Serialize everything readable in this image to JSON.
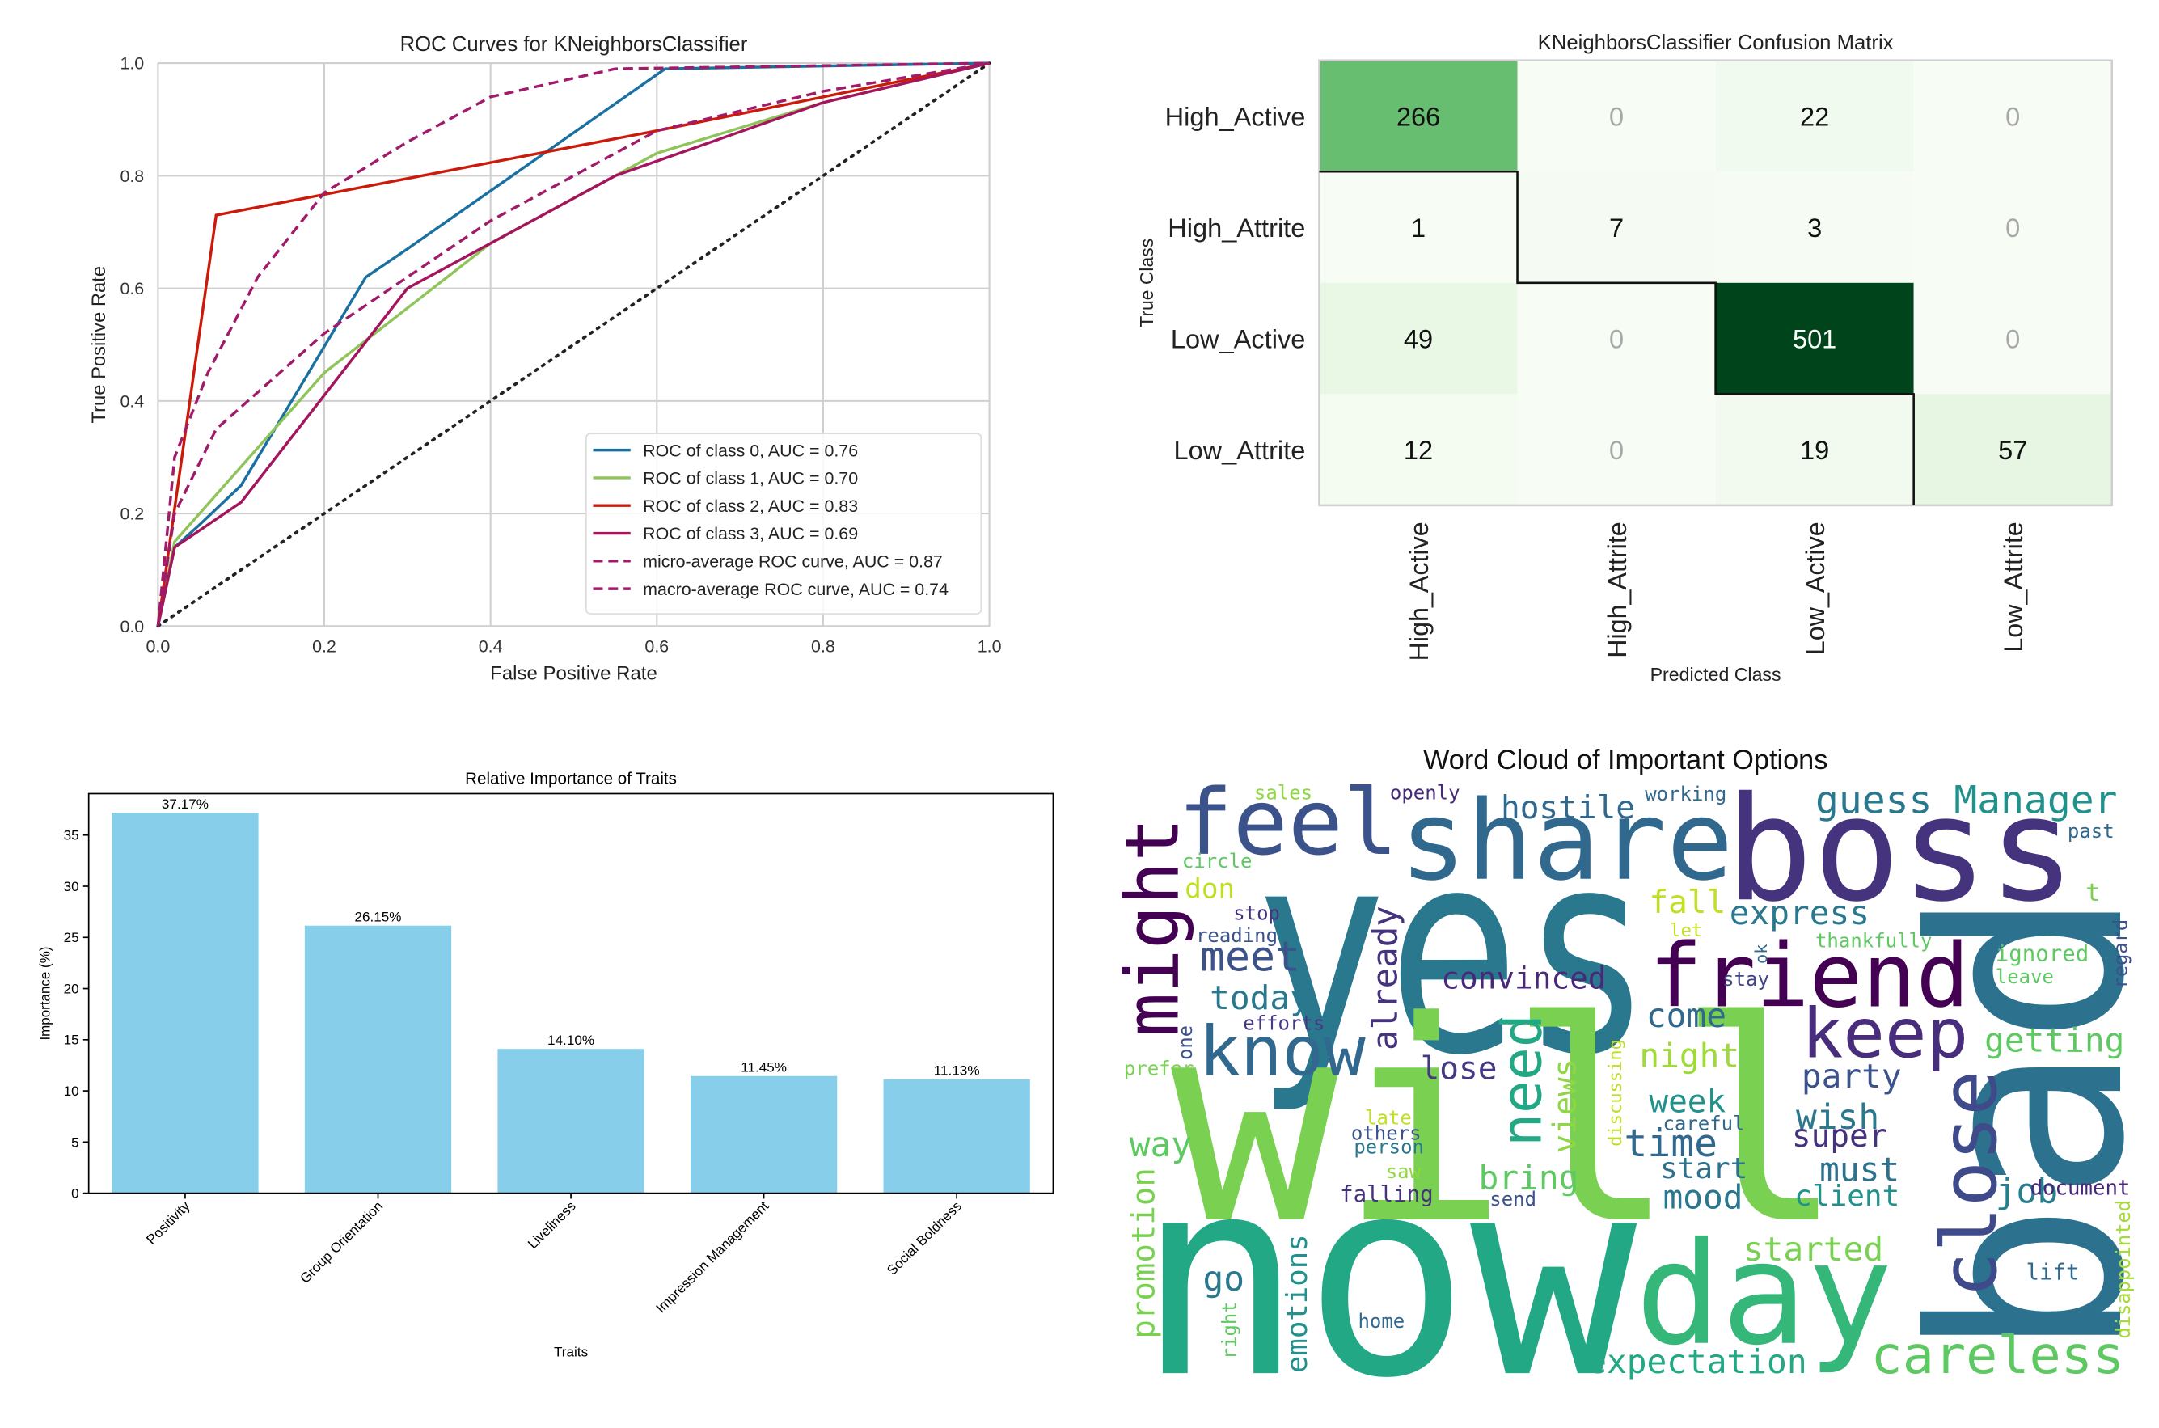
{
  "chart_data": [
    {
      "type": "line",
      "title": "ROC Curves for KNeighborsClassifier",
      "xlabel": "False Positive Rate",
      "ylabel": "True Positive Rate",
      "xlim": [
        0,
        1
      ],
      "ylim": [
        0,
        1
      ],
      "xticks": [
        {
          "value": 0,
          "label": "0.0"
        },
        0.2,
        0.4,
        0.6,
        0.8,
        {
          "value": 1,
          "label": "1.0"
        }
      ],
      "yticks": [
        {
          "value": 0,
          "label": "0.0"
        },
        0.2,
        0.4,
        0.6,
        0.8,
        {
          "value": 1,
          "label": "1.0"
        }
      ],
      "grid": true,
      "legend": "lower right",
      "series": [
        {
          "name": "ROC of class 0, AUC = 0.76",
          "color": "#1a70a0",
          "linestyle": "solid",
          "x": [
            0,
            0.02,
            0.05,
            0.1,
            0.25,
            0.3,
            0.61,
            1
          ],
          "y": [
            0,
            0.14,
            0.18,
            0.25,
            0.62,
            0.67,
            0.99,
            1
          ]
        },
        {
          "name": "ROC of class 1, AUC = 0.70",
          "color": "#8fc45a",
          "linestyle": "solid",
          "x": [
            0,
            0.02,
            0.05,
            0.2,
            0.4,
            0.55,
            0.6,
            0.8,
            1
          ],
          "y": [
            0,
            0.15,
            0.2,
            0.45,
            0.68,
            0.8,
            0.84,
            0.93,
            1
          ]
        },
        {
          "name": "ROC of class 2, AUC = 0.83",
          "color": "#cc1a0a",
          "linestyle": "solid",
          "x": [
            0,
            0.07,
            0.6,
            1
          ],
          "y": [
            0,
            0.73,
            0.88,
            1
          ]
        },
        {
          "name": "ROC of class 3, AUC = 0.69",
          "color": "#a5155e",
          "linestyle": "solid",
          "x": [
            0,
            0.02,
            0.1,
            0.3,
            0.55,
            0.8,
            1
          ],
          "y": [
            0,
            0.14,
            0.22,
            0.6,
            0.8,
            0.93,
            1
          ]
        },
        {
          "name": "micro-average ROC curve, AUC = 0.87",
          "color": "#a01c6a",
          "linestyle": "dashed",
          "x": [
            0,
            0.02,
            0.06,
            0.12,
            0.2,
            0.3,
            0.4,
            0.55,
            1
          ],
          "y": [
            0,
            0.3,
            0.45,
            0.62,
            0.77,
            0.86,
            0.94,
            0.99,
            1
          ]
        },
        {
          "name": "macro-average ROC curve, AUC = 0.74",
          "color": "#a01c6a",
          "linestyle": "dashed",
          "x": [
            0,
            0.02,
            0.07,
            0.2,
            0.4,
            0.6,
            0.8,
            1
          ],
          "y": [
            0,
            0.2,
            0.35,
            0.52,
            0.72,
            0.88,
            0.95,
            1
          ]
        }
      ]
    },
    {
      "type": "heatmap",
      "title": "KNeighborsClassifier Confusion Matrix",
      "xlabel": "Predicted Class",
      "ylabel": "True Class",
      "rows": [
        "High_Active",
        "High_Attrite",
        "Low_Active",
        "Low_Attrite"
      ],
      "columns": [
        "High_Active",
        "High_Attrite",
        "Low_Active",
        "Low_Attrite"
      ],
      "values": [
        [
          266,
          0,
          22,
          0
        ],
        [
          1,
          7,
          3,
          0
        ],
        [
          49,
          0,
          501,
          0
        ],
        [
          12,
          0,
          19,
          57
        ]
      ],
      "colormap": [
        "#f7fcf5",
        "#e5f5e0",
        "#c7e9c0",
        "#a1d99b",
        "#74c476",
        "#41ab5d",
        "#238b45",
        "#006d2c",
        "#00441b"
      ]
    },
    {
      "type": "bar",
      "title": "Relative Importance of Traits",
      "xlabel": "Traits",
      "ylabel": "Importance (%)",
      "categories": [
        "Positivity",
        "Group Orientation",
        "Liveliness",
        "Impression Management",
        "Social Boldness"
      ],
      "values": [
        37.17,
        26.15,
        14.1,
        11.45,
        11.13
      ],
      "value_labels": [
        "37.17%",
        "26.15%",
        "14.10%",
        "11.45%",
        "11.13%"
      ],
      "color": "#87ceeb",
      "ylim": [
        0,
        39.05
      ],
      "yticks": [
        0,
        5,
        10,
        15,
        20,
        25,
        30,
        35
      ]
    },
    {
      "type": "wordcloud",
      "title": "Word Cloud of Important Options",
      "words": [
        {
          "text": "yes",
          "color": "#2a788e"
        },
        {
          "text": "will",
          "color": "#7ad151"
        },
        {
          "text": "now",
          "color": "#22a884"
        },
        {
          "text": "bad",
          "color": "#2c728e"
        },
        {
          "text": "boss",
          "color": "#46337e"
        },
        {
          "text": "share",
          "color": "#31688e"
        },
        {
          "text": "feel",
          "color": "#3b528b"
        },
        {
          "text": "friend",
          "color": "#440154"
        },
        {
          "text": "day",
          "color": "#35b779"
        },
        {
          "text": "keep",
          "color": "#472d7b"
        },
        {
          "text": "know",
          "color": "#31688e"
        },
        {
          "text": "careless",
          "color": "#5ec962"
        },
        {
          "text": "close",
          "color": "#3e4a89"
        },
        {
          "text": "might",
          "color": "#440154"
        },
        {
          "text": "guess",
          "color": "#2a788e"
        },
        {
          "text": "Manager",
          "color": "#21918c"
        },
        {
          "text": "hostile",
          "color": "#31688e"
        },
        {
          "text": "express",
          "color": "#2a788e"
        },
        {
          "text": "fall",
          "color": "#c2df23"
        },
        {
          "text": "meet",
          "color": "#3b528b"
        },
        {
          "text": "today",
          "color": "#2a788e"
        },
        {
          "text": "convinced",
          "color": "#482878"
        },
        {
          "text": "already",
          "color": "#46337e"
        },
        {
          "text": "need",
          "color": "#22a884"
        },
        {
          "text": "come",
          "color": "#31688e"
        },
        {
          "text": "night",
          "color": "#a0da39"
        },
        {
          "text": "lose",
          "color": "#443a83"
        },
        {
          "text": "party",
          "color": "#3b528b"
        },
        {
          "text": "getting",
          "color": "#5ec962"
        },
        {
          "text": "wish",
          "color": "#2a788e"
        },
        {
          "text": "super",
          "color": "#46337e"
        },
        {
          "text": "week",
          "color": "#21918c"
        },
        {
          "text": "time",
          "color": "#31688e"
        },
        {
          "text": "start",
          "color": "#2c728e"
        },
        {
          "text": "mood",
          "color": "#2a788e"
        },
        {
          "text": "must",
          "color": "#2c728e"
        },
        {
          "text": "client",
          "color": "#21918c"
        },
        {
          "text": "job",
          "color": "#277f8e"
        },
        {
          "text": "views",
          "color": "#8fd744"
        },
        {
          "text": "bring",
          "color": "#5ec962"
        },
        {
          "text": "way",
          "color": "#5ec962"
        },
        {
          "text": "promotion",
          "color": "#7ad151"
        },
        {
          "text": "go",
          "color": "#2a788e"
        },
        {
          "text": "emotions",
          "color": "#21918c"
        },
        {
          "text": "expectation",
          "color": "#22a884"
        },
        {
          "text": "started",
          "color": "#7ad151"
        },
        {
          "text": "lift",
          "color": "#31688e"
        },
        {
          "text": "document",
          "color": "#482878"
        },
        {
          "text": "disappointed",
          "color": "#a5db36"
        },
        {
          "text": "past",
          "color": "#31688e"
        },
        {
          "text": "t",
          "color": "#7ad151"
        },
        {
          "text": "ignored",
          "color": "#5ec962"
        },
        {
          "text": "leave",
          "color": "#5ec962"
        },
        {
          "text": "regard",
          "color": "#3b528b"
        },
        {
          "text": "thankfully",
          "color": "#5ec962"
        },
        {
          "text": "ok",
          "color": "#31688e"
        },
        {
          "text": "stay",
          "color": "#414487"
        },
        {
          "text": "let",
          "color": "#c2df23"
        },
        {
          "text": "sales",
          "color": "#8fd744"
        },
        {
          "text": "openly",
          "color": "#482878"
        },
        {
          "text": "working",
          "color": "#31688e"
        },
        {
          "text": "circle",
          "color": "#5ec962"
        },
        {
          "text": "don",
          "color": "#bddf26"
        },
        {
          "text": "stop",
          "color": "#46337e"
        },
        {
          "text": "reading",
          "color": "#3b528b"
        },
        {
          "text": "efforts",
          "color": "#443a83"
        },
        {
          "text": "one",
          "color": "#3b528b"
        },
        {
          "text": "prefer",
          "color": "#7ad151"
        },
        {
          "text": "late",
          "color": "#c2df23"
        },
        {
          "text": "others",
          "color": "#3b528b"
        },
        {
          "text": "person",
          "color": "#2a788e"
        },
        {
          "text": "discussing",
          "color": "#bddf26"
        },
        {
          "text": "careful",
          "color": "#31688e"
        },
        {
          "text": "saw",
          "color": "#8fd744"
        },
        {
          "text": "falling",
          "color": "#46337e"
        },
        {
          "text": "send",
          "color": "#3b528b"
        },
        {
          "text": "home",
          "color": "#31688e"
        },
        {
          "text": "right",
          "color": "#5ec962"
        }
      ]
    }
  ]
}
